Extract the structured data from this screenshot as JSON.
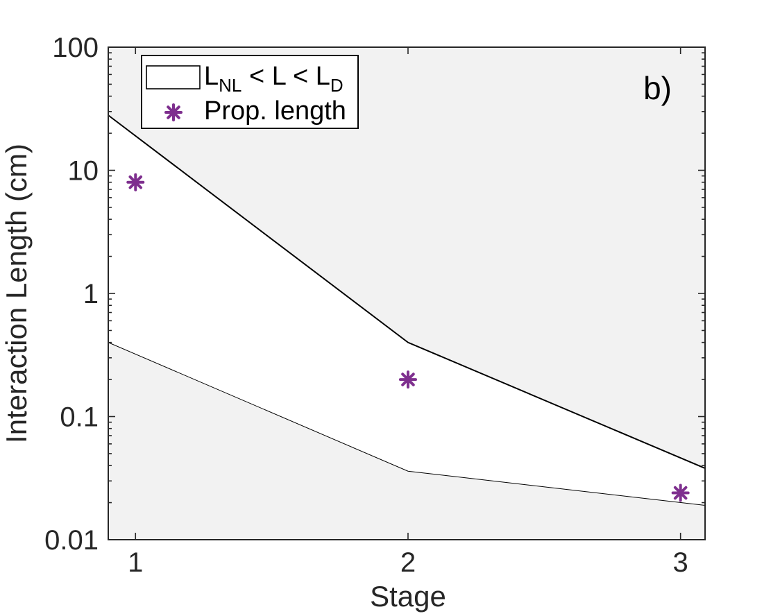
{
  "chart_data": {
    "type": "line",
    "title": "",
    "panel_label": "b)",
    "xlabel": "Stage",
    "ylabel": "Interaction Length (cm)",
    "xlim": [
      0.9,
      3.09
    ],
    "ylim": [
      0.01,
      100
    ],
    "yscale": "log",
    "x_ticks": [
      1,
      2,
      3
    ],
    "x_tick_labels": [
      "1",
      "2",
      "3"
    ],
    "y_ticks": [
      0.01,
      0.1,
      1,
      10,
      100
    ],
    "y_tick_labels": [
      "0.01",
      "0.1",
      "1",
      "10",
      "100"
    ],
    "grid": false,
    "band": {
      "name": "L_NL < L < L_D",
      "x": [
        0.9,
        2,
        3.09
      ],
      "upper_LD": [
        28,
        0.4,
        0.038
      ],
      "lower_LNL": [
        0.4,
        0.036,
        0.019
      ]
    },
    "series": [
      {
        "name": "Prop. length",
        "marker": "asterisk",
        "x": [
          1,
          2,
          3
        ],
        "values": [
          8,
          0.2,
          0.024
        ]
      }
    ],
    "legend": {
      "position": "top-left",
      "band_label": {
        "main": "L",
        "sub1": "NL",
        "mid": " < L < L",
        "sub2": "D"
      },
      "points_label": "Prop. length"
    },
    "colors": {
      "outside_band": "#f2f2f2",
      "inside_band": "#ffffff",
      "band_edge": "#000000",
      "points": "#7e2f8e",
      "axis": "#262626"
    }
  }
}
